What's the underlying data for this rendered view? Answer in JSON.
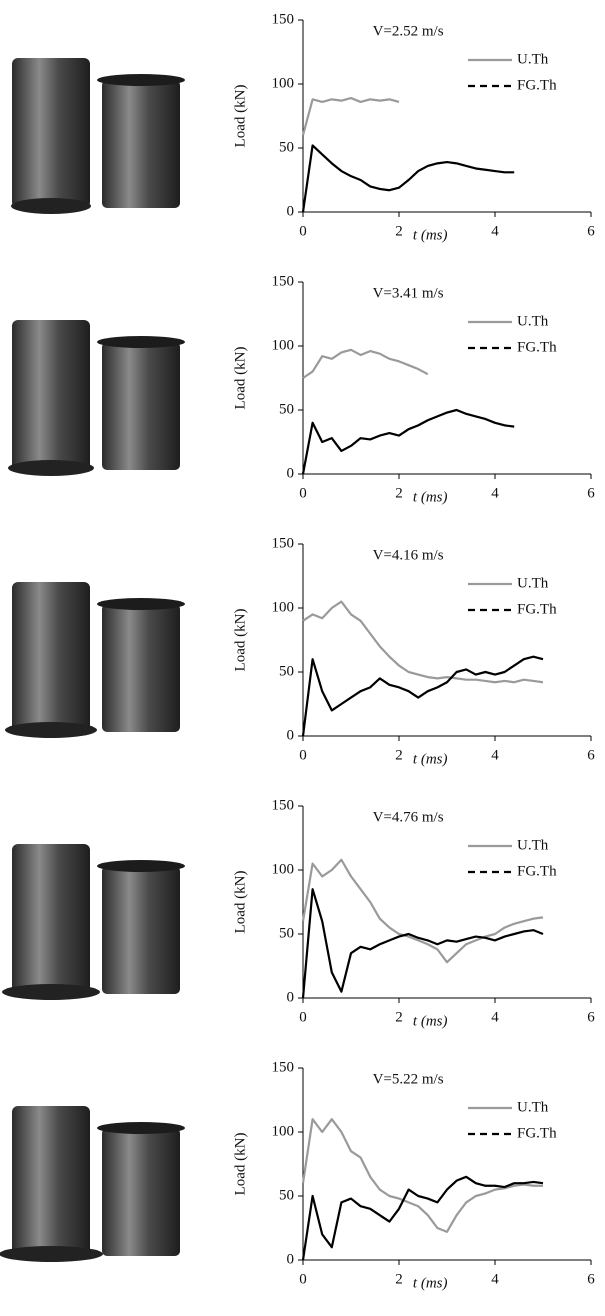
{
  "chart_data": [
    {
      "type": "line",
      "title": "V=2.52 m/s",
      "xlabel": "t (ms)",
      "ylabel": "Load (kN)",
      "x": [
        0,
        0.2,
        0.4,
        0.6,
        0.8,
        1,
        1.2,
        1.4,
        1.6,
        1.8,
        2,
        2.2,
        2.4,
        2.6,
        2.8,
        3,
        3.2,
        3.4,
        3.6,
        3.8,
        4,
        4.2,
        4.4,
        4.6,
        4.8,
        5
      ],
      "xlim": [
        0,
        6
      ],
      "ylim": [
        0,
        150
      ],
      "xticks": [
        0,
        2,
        4,
        6
      ],
      "yticks": [
        0,
        50,
        100,
        150
      ],
      "series": [
        {
          "name": "U.Th",
          "color": "#9a9a9a",
          "style": "solid",
          "values": [
            60,
            88,
            86,
            88,
            87,
            89,
            86,
            88,
            87,
            88,
            86,
            null,
            null,
            null,
            null,
            null,
            null,
            null,
            null,
            null,
            null,
            null,
            null,
            null,
            null,
            null
          ]
        },
        {
          "name": "FG.Th",
          "color": "#000000",
          "style": "dashed",
          "values": [
            0,
            52,
            45,
            38,
            32,
            28,
            25,
            20,
            18,
            17,
            19,
            25,
            32,
            36,
            38,
            39,
            38,
            36,
            34,
            33,
            32,
            31,
            31,
            null,
            null,
            null
          ]
        }
      ]
    },
    {
      "type": "line",
      "title": "V=3.41 m/s",
      "xlabel": "t (ms)",
      "ylabel": "Load (kN)",
      "x": [
        0,
        0.2,
        0.4,
        0.6,
        0.8,
        1,
        1.2,
        1.4,
        1.6,
        1.8,
        2,
        2.2,
        2.4,
        2.6,
        2.8,
        3,
        3.2,
        3.4,
        3.6,
        3.8,
        4,
        4.2,
        4.4,
        4.6,
        4.8,
        5
      ],
      "xlim": [
        0,
        6
      ],
      "ylim": [
        0,
        150
      ],
      "xticks": [
        0,
        2,
        4,
        6
      ],
      "yticks": [
        0,
        50,
        100,
        150
      ],
      "series": [
        {
          "name": "U.Th",
          "color": "#9a9a9a",
          "style": "solid",
          "values": [
            75,
            80,
            92,
            90,
            95,
            97,
            93,
            96,
            94,
            90,
            88,
            85,
            82,
            78,
            null,
            null,
            null,
            null,
            null,
            null,
            null,
            null,
            null,
            null,
            null,
            null
          ]
        },
        {
          "name": "FG.Th",
          "color": "#000000",
          "style": "dashed",
          "values": [
            0,
            40,
            25,
            28,
            18,
            22,
            28,
            27,
            30,
            32,
            30,
            35,
            38,
            42,
            45,
            48,
            50,
            47,
            45,
            43,
            40,
            38,
            37,
            null,
            null,
            null
          ]
        }
      ]
    },
    {
      "type": "line",
      "title": "V=4.16 m/s",
      "xlabel": "t (ms)",
      "ylabel": "Load (kN)",
      "x": [
        0,
        0.2,
        0.4,
        0.6,
        0.8,
        1,
        1.2,
        1.4,
        1.6,
        1.8,
        2,
        2.2,
        2.4,
        2.6,
        2.8,
        3,
        3.2,
        3.4,
        3.6,
        3.8,
        4,
        4.2,
        4.4,
        4.6,
        4.8,
        5
      ],
      "xlim": [
        0,
        6
      ],
      "ylim": [
        0,
        150
      ],
      "xticks": [
        0,
        2,
        4,
        6
      ],
      "yticks": [
        0,
        50,
        100,
        150
      ],
      "series": [
        {
          "name": "U.Th",
          "color": "#9a9a9a",
          "style": "solid",
          "values": [
            90,
            95,
            92,
            100,
            105,
            95,
            90,
            80,
            70,
            62,
            55,
            50,
            48,
            46,
            45,
            46,
            45,
            44,
            44,
            43,
            42,
            43,
            42,
            44,
            43,
            42
          ]
        },
        {
          "name": "FG.Th",
          "color": "#000000",
          "style": "dashed",
          "values": [
            0,
            60,
            35,
            20,
            25,
            30,
            35,
            38,
            45,
            40,
            38,
            35,
            30,
            35,
            38,
            42,
            50,
            52,
            48,
            50,
            48,
            50,
            55,
            60,
            62,
            60
          ]
        }
      ]
    },
    {
      "type": "line",
      "title": "V=4.76 m/s",
      "xlabel": "t (ms)",
      "ylabel": "Load (kN)",
      "x": [
        0,
        0.2,
        0.4,
        0.6,
        0.8,
        1,
        1.2,
        1.4,
        1.6,
        1.8,
        2,
        2.2,
        2.4,
        2.6,
        2.8,
        3,
        3.2,
        3.4,
        3.6,
        3.8,
        4,
        4.2,
        4.4,
        4.6,
        4.8,
        5
      ],
      "xlim": [
        0,
        6
      ],
      "ylim": [
        0,
        150
      ],
      "xticks": [
        0,
        2,
        4,
        6
      ],
      "yticks": [
        0,
        50,
        100,
        150
      ],
      "series": [
        {
          "name": "U.Th",
          "color": "#9a9a9a",
          "style": "solid",
          "values": [
            60,
            105,
            95,
            100,
            108,
            95,
            85,
            75,
            62,
            55,
            50,
            48,
            45,
            42,
            38,
            28,
            35,
            42,
            45,
            48,
            50,
            55,
            58,
            60,
            62,
            63
          ]
        },
        {
          "name": "FG.Th",
          "color": "#000000",
          "style": "dashed",
          "values": [
            0,
            85,
            60,
            20,
            5,
            35,
            40,
            38,
            42,
            45,
            48,
            50,
            47,
            45,
            42,
            45,
            44,
            46,
            48,
            47,
            45,
            48,
            50,
            52,
            53,
            50
          ]
        }
      ]
    },
    {
      "type": "line",
      "title": "V=5.22 m/s",
      "xlabel": "t (ms)",
      "ylabel": "Load (kN)",
      "x": [
        0,
        0.2,
        0.4,
        0.6,
        0.8,
        1,
        1.2,
        1.4,
        1.6,
        1.8,
        2,
        2.2,
        2.4,
        2.6,
        2.8,
        3,
        3.2,
        3.4,
        3.6,
        3.8,
        4,
        4.2,
        4.4,
        4.6,
        4.8,
        5
      ],
      "xlim": [
        0,
        6
      ],
      "ylim": [
        0,
        150
      ],
      "xticks": [
        0,
        2,
        4,
        6
      ],
      "yticks": [
        0,
        50,
        100,
        150
      ],
      "series": [
        {
          "name": "U.Th",
          "color": "#9a9a9a",
          "style": "solid",
          "values": [
            60,
            110,
            100,
            110,
            100,
            85,
            80,
            65,
            55,
            50,
            48,
            45,
            42,
            35,
            25,
            22,
            35,
            45,
            50,
            52,
            55,
            56,
            58,
            59,
            58,
            58
          ]
        },
        {
          "name": "FG.Th",
          "color": "#000000",
          "style": "dashed",
          "values": [
            0,
            50,
            20,
            10,
            45,
            48,
            42,
            40,
            35,
            30,
            40,
            55,
            50,
            48,
            45,
            55,
            62,
            65,
            60,
            58,
            58,
            57,
            60,
            60,
            61,
            60
          ]
        }
      ]
    }
  ]
}
